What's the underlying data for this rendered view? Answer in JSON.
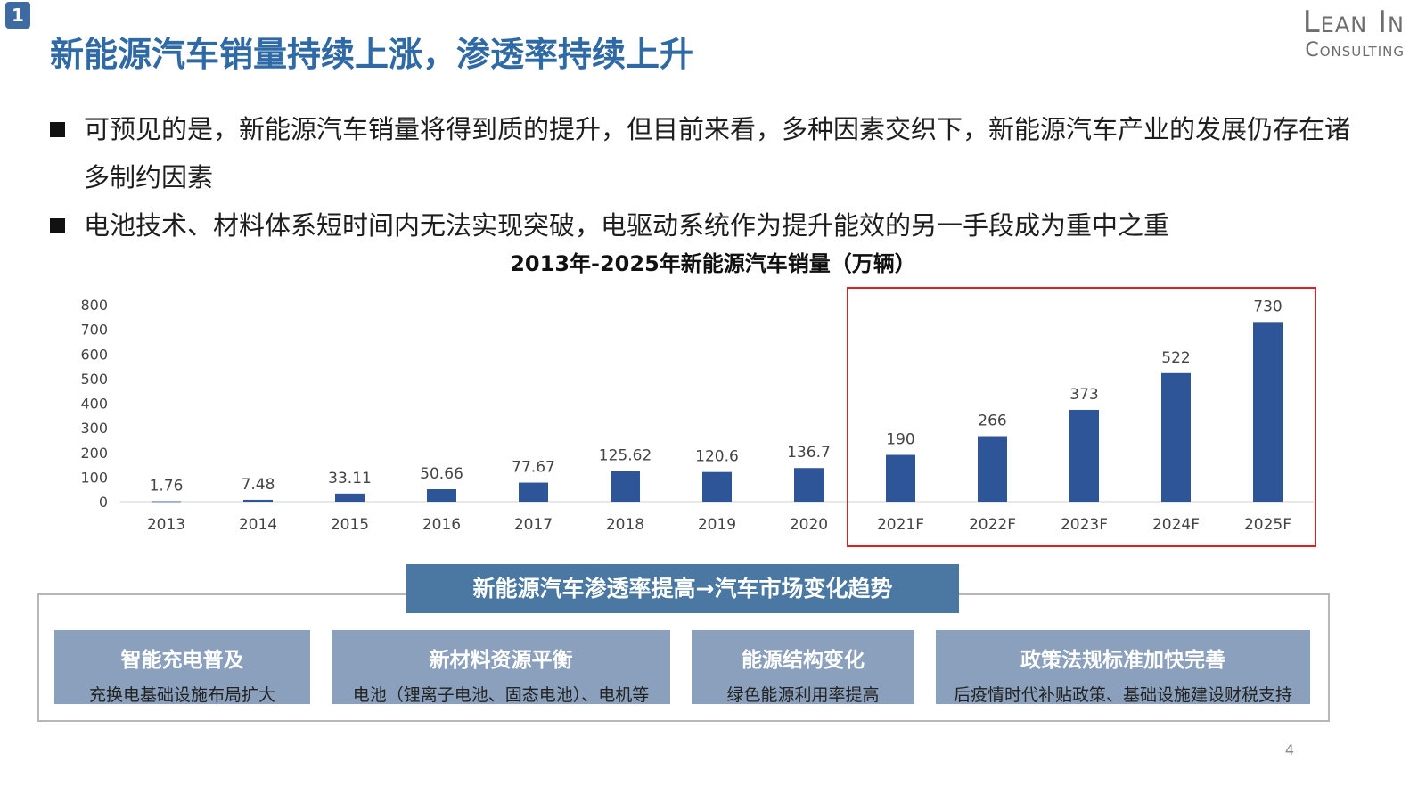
{
  "slide": {
    "badge": "1",
    "title": "新能源汽车销量持续上涨，渗透率持续上升",
    "logo_line1": "Lean In",
    "logo_line2": "Consulting",
    "page_number": "4"
  },
  "bullets": [
    "可预见的是，新能源汽车销量将得到质的提升，但目前来看，多种因素交织下，新能源汽车产业的发展仍存在诸多制约因素",
    "电池技术、材料体系短时间内无法实现突破，电驱动系统作为提升能效的另一手段成为重中之重"
  ],
  "chart_data": {
    "type": "bar",
    "title": "2013年-2025年新能源汽车销量（万辆）",
    "categories": [
      "2013",
      "2014",
      "2015",
      "2016",
      "2017",
      "2018",
      "2019",
      "2020",
      "2021F",
      "2022F",
      "2023F",
      "2024F",
      "2025F"
    ],
    "values": [
      1.76,
      7.48,
      33.11,
      50.66,
      77.67,
      125.62,
      120.6,
      136.7,
      190,
      266,
      373,
      522,
      730
    ],
    "value_labels": [
      "1.76",
      "7.48",
      "33.11",
      "50.66",
      "77.67",
      "125.62",
      "120.6",
      "136.7",
      "190",
      "266",
      "373",
      "522",
      "730"
    ],
    "yticks": [
      "0",
      "100",
      "200",
      "300",
      "400",
      "500",
      "600",
      "700",
      "800"
    ],
    "ylim": [
      0,
      800
    ],
    "grid": false,
    "bar_color": "#2e5597",
    "highlight_color": "#e02020",
    "highlight_categories": [
      "2021F",
      "2022F",
      "2023F",
      "2024F",
      "2025F"
    ]
  },
  "trend": {
    "header": "新能源汽车渗透率提高→汽车市场变化趋势",
    "cards": [
      {
        "title": "智能充电普及",
        "subtitle": "充换电基础设施布局扩大"
      },
      {
        "title": "新材料资源平衡",
        "subtitle": "电池（锂离子电池、固态电池）、电机等"
      },
      {
        "title": "能源结构变化",
        "subtitle": "绿色能源利用率提高"
      },
      {
        "title": "政策法规标准加快完善",
        "subtitle": "后疫情时代补贴政策、基础设施建设财税支持"
      }
    ]
  }
}
